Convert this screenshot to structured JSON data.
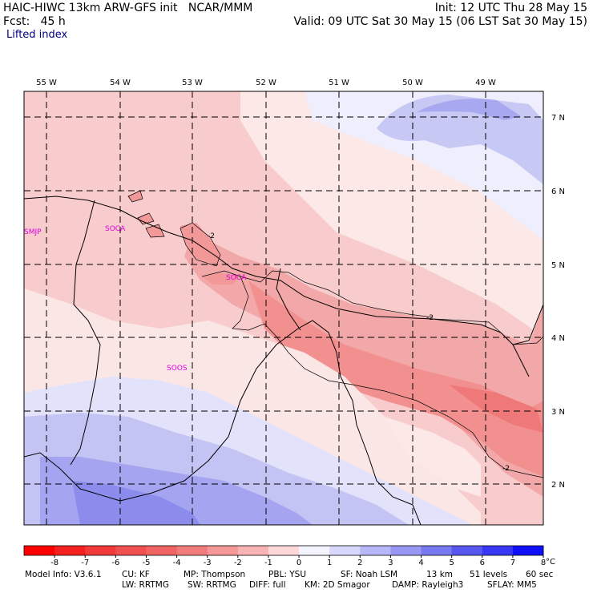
{
  "header": {
    "line1_left": "HAIC-HIWC 13km ARW-GFS init   NCAR/MMM",
    "line1_right": "Init: 12 UTC Thu 28 May 15",
    "line2_left": "Fcst:   45 h",
    "line2_right": "Valid: 09 UTC Sat 30 May 15 (06 LST Sat 30 May 15)",
    "field_name": "Lifted index"
  },
  "map": {
    "longitude_labels": [
      "55 W",
      "54 W",
      "53 W",
      "52 W",
      "51 W",
      "50 W",
      "49 W"
    ],
    "latitude_labels": [
      "7 N",
      "6 N",
      "5 N",
      "4 N",
      "3 N",
      "2 N"
    ],
    "station_labels": [
      "SMJP",
      "SOCA",
      "SOCA",
      "SOOS"
    ],
    "contour_labels": [
      "-2",
      "-2",
      "-2"
    ],
    "station_color": "#e000e0"
  },
  "colorbar": {
    "tick_labels": [
      "-8",
      "-7",
      "-6",
      "-5",
      "-4",
      "-3",
      "-2",
      "-1",
      "0",
      "1",
      "2",
      "3",
      "4",
      "5",
      "6",
      "7",
      "8"
    ],
    "unit": "°C",
    "colors": [
      "#ff0000",
      "#f52020",
      "#f23a3a",
      "#f05050",
      "#f06464",
      "#f27c7c",
      "#f59898",
      "#f8b4b4",
      "#fcd8d8",
      "#f4f4ff",
      "#d8d8fc",
      "#b8b8f8",
      "#9898f4",
      "#7878f0",
      "#5858f0",
      "#3838f4",
      "#1010f8"
    ]
  },
  "footer": {
    "line1": [
      "Model Info: V3.6.1",
      "CU: KF",
      "MP: Thompson",
      "PBL: YSU",
      "SF: Noah LSM",
      "13 km",
      "51 levels",
      "60 sec"
    ],
    "line2": [
      "LW: RRTMG",
      "SW: RRTMG",
      "DIFF: full",
      "KM: 2D Smagor",
      "DAMP: Rayleigh3",
      "SFLAY: MM5"
    ]
  }
}
